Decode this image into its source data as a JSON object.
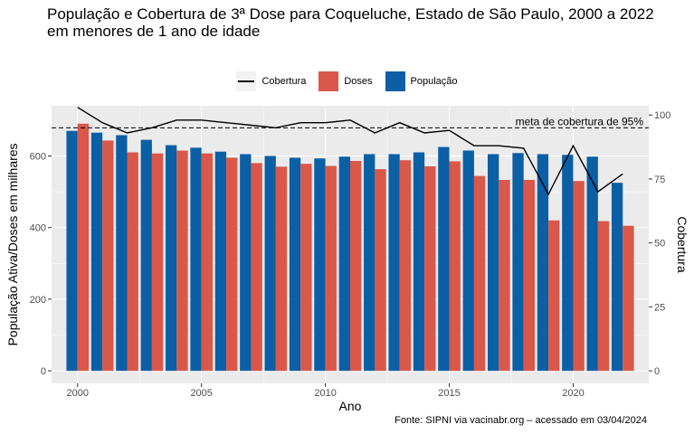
{
  "title_line1": "População e Cobertura de 3ª Dose para Coqueluche, Estado de São Paulo, 2000 a 2022",
  "title_line2": "em menores de 1 ano de idade",
  "caption": "Fonte: SIPNI via vacinabr.org – acessado em 03/04/2024",
  "legend": {
    "cobertura": "Cobertura",
    "doses": "Doses",
    "populacao": "População"
  },
  "colors": {
    "populacao": "#0b5fa5",
    "doses": "#d9584a",
    "panel": "#ebebeb",
    "grid": "#ffffff"
  },
  "chart_data": {
    "type": "bar",
    "title": "População e Cobertura de 3ª Dose para Coqueluche, Estado de São Paulo, 2000 a 2022 em menores de 1 ano de idade",
    "xlabel": "Ano",
    "ylabel": "População Ativa/Doses em milhares",
    "y2label": "Cobertura",
    "x": [
      2000,
      2001,
      2002,
      2003,
      2004,
      2005,
      2006,
      2007,
      2008,
      2009,
      2010,
      2011,
      2012,
      2013,
      2014,
      2015,
      2016,
      2017,
      2018,
      2019,
      2020,
      2021,
      2022
    ],
    "series": [
      {
        "name": "População",
        "type": "bar",
        "values": [
          670,
          665,
          658,
          645,
          630,
          623,
          612,
          605,
          600,
          595,
          593,
          598,
          605,
          605,
          610,
          625,
          615,
          605,
          608,
          605,
          603,
          598,
          525
        ]
      },
      {
        "name": "Doses",
        "type": "bar",
        "values": [
          690,
          643,
          610,
          607,
          615,
          607,
          595,
          580,
          570,
          578,
          572,
          586,
          563,
          588,
          571,
          585,
          544,
          533,
          533,
          420,
          530,
          418,
          405
        ]
      },
      {
        "name": "Cobertura",
        "type": "line",
        "axis": "right",
        "values": [
          103,
          97,
          93,
          95,
          98,
          98,
          97,
          96,
          95,
          97,
          97,
          98,
          93,
          97,
          93,
          94,
          88,
          88,
          87,
          69,
          88,
          70,
          77
        ]
      }
    ],
    "xticks": [
      2000,
      2005,
      2010,
      2015,
      2020
    ],
    "yticks_left": [
      0,
      200,
      400,
      600
    ],
    "yticks_right": [
      0,
      25,
      50,
      75,
      100
    ],
    "ylim_left": [
      -35,
      740
    ],
    "ylim_right": [
      -4.9,
      103.6
    ],
    "reference_line": {
      "value": 95,
      "axis": "right",
      "style": "dashed",
      "label": "meta de cobertura de 95%"
    },
    "grid": true,
    "legend_position": "top"
  }
}
